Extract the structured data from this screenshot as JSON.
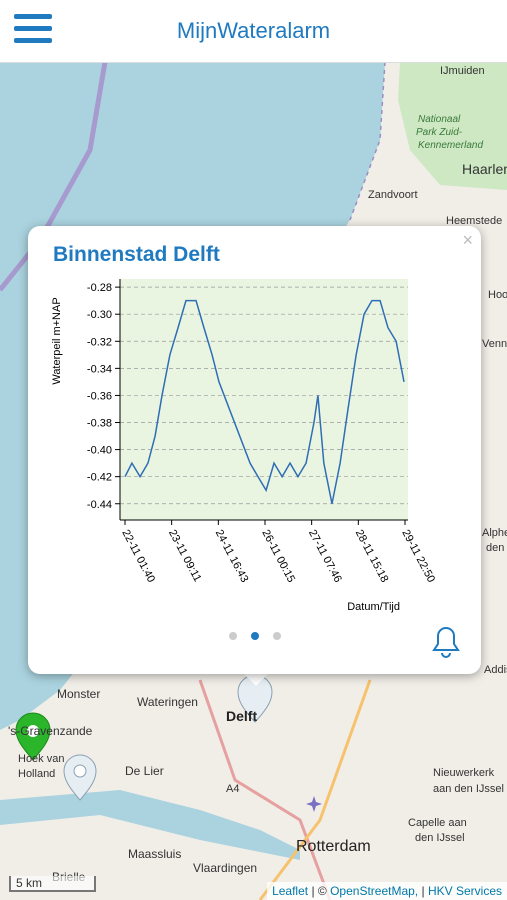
{
  "header": {
    "title": "MijnWateralarm"
  },
  "map": {
    "labels": [
      "IJmuiden",
      "Nationaal",
      "Park Zuid-",
      "Kennemerland",
      "Haarlem",
      "Zandvoort",
      "Heemstede",
      "Hoo",
      "Venn",
      "Alphe",
      "den",
      "Addis",
      "Monster",
      "Wateringen",
      "Delft",
      "'s-Gravenzande",
      "Hoek van",
      "Holland",
      "De Lier",
      "A4",
      "Nieuwerkerk",
      "aan den IJssel",
      "Capelle aan",
      "den IJssel",
      "Rotterdam",
      "Maassluis",
      "Vlaardingen",
      "Brielle"
    ],
    "scale": "5 km",
    "attribution": [
      "Leaflet",
      "| ©",
      "OpenStreetMap,",
      "|",
      "HKV Services"
    ]
  },
  "popup": {
    "title": "Binnenstad Delft",
    "close": "×"
  },
  "chart_data": {
    "type": "line",
    "ylabel": "Waterpeil m+NAP",
    "xlabel": "Datum/Tijd",
    "color": "#2f6db5",
    "x": [
      "22-11 01:40",
      "22-11 06:20",
      "22-11 11:50",
      "22-11 17:10",
      "22-11 22:00",
      "23-11 02:40",
      "23-11 08:00",
      "23-11 13:30",
      "23-11 18:50",
      "24-11 01:40",
      "24-11 07:00",
      "24-11 12:30",
      "24-11 17:10",
      "25-11 14:10",
      "25-11 19:30",
      "26-11 01:00",
      "26-11 06:20",
      "26-11 11:50",
      "26-11 17:10",
      "26-11 22:30",
      "27-11 04:00",
      "27-11 09:20",
      "27-11 12:00",
      "27-11 16:00",
      "27-11 21:30",
      "28-11 03:00",
      "28-11 08:20",
      "28-11 13:50",
      "28-11 19:10",
      "29-11 00:30",
      "29-11 06:00",
      "29-11 11:20",
      "29-11 16:50",
      "29-11 22:10"
    ],
    "values": [
      -0.42,
      -0.41,
      -0.42,
      -0.41,
      -0.39,
      -0.36,
      -0.33,
      -0.31,
      -0.29,
      -0.29,
      -0.31,
      -0.33,
      -0.35,
      -0.41,
      -0.42,
      -0.43,
      -0.41,
      -0.42,
      -0.41,
      -0.42,
      -0.41,
      -0.38,
      -0.36,
      -0.41,
      -0.44,
      -0.41,
      -0.37,
      -0.33,
      -0.3,
      -0.29,
      -0.29,
      -0.31,
      -0.32,
      -0.35
    ],
    "xlim": [
      "22-11 01:40",
      "29-11 22:50"
    ],
    "xticks": [
      "22-11 01:40",
      "23-11 09:11",
      "24-11 16:43",
      "26-11 00:15",
      "27-11 07:46",
      "28-11 15:18",
      "29-11 22:50"
    ],
    "ylim": [
      -0.452,
      -0.274
    ],
    "yticks": [
      -0.28,
      {
        "value": -0.3,
        "label": "-0.30"
      },
      -0.32,
      -0.34,
      -0.36,
      -0.38,
      {
        "value": -0.4,
        "label": "-0.40"
      },
      -0.42,
      -0.44
    ],
    "grid": true
  }
}
